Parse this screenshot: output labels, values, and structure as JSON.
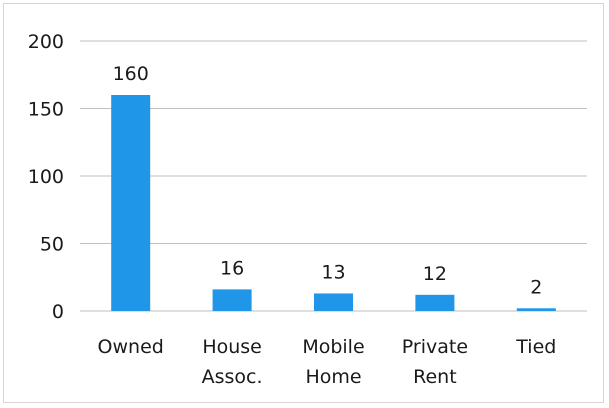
{
  "chart_data": {
    "type": "bar",
    "categories": [
      [
        "Owned"
      ],
      [
        "House",
        "Assoc."
      ],
      [
        "Mobile",
        "Home"
      ],
      [
        "Private",
        "Rent"
      ],
      [
        "Tied"
      ]
    ],
    "values": [
      160,
      16,
      13,
      12,
      2
    ],
    "data_labels": [
      "160",
      "16",
      "13",
      "12",
      "2"
    ],
    "y_ticks": [
      "0",
      "50",
      "100",
      "150",
      "200"
    ],
    "ylim": [
      0,
      200
    ],
    "grid": true,
    "legend": "none",
    "title": "",
    "xlabel": "",
    "ylabel": "",
    "bar_color": "#1f96e8",
    "grid_color": "#bfbfbf"
  }
}
